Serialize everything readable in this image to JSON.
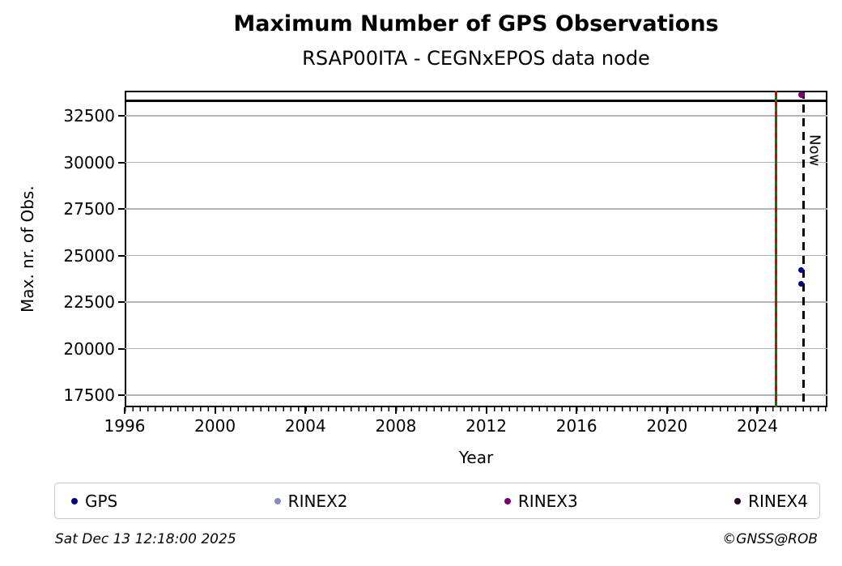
{
  "chart_data": {
    "type": "scatter",
    "title": "Maximum Number of GPS Observations",
    "subtitle": "RSAP00ITA - CEGNxEPOS data node",
    "xlabel": "Year",
    "ylabel": "Max. nr. of Obs.",
    "xlim": [
      1996.0,
      2027.1
    ],
    "ylim": [
      16850,
      33850
    ],
    "x_ticks": [
      1996,
      2000,
      2004,
      2008,
      2012,
      2016,
      2020,
      2024
    ],
    "y_ticks": [
      17500,
      20000,
      22500,
      25000,
      27500,
      30000,
      32500
    ],
    "grid": "horizontal",
    "series": [
      {
        "name": "GPS",
        "color": "#00008b",
        "marker_px": 7,
        "points": [
          {
            "x": 2025.95,
            "y": 24230
          },
          {
            "x": 2025.95,
            "y": 23490
          }
        ]
      },
      {
        "name": "RINEX2",
        "color": "#8787cb",
        "marker_px": 7,
        "points": []
      },
      {
        "name": "RINEX3",
        "color": "#770077",
        "marker_px": 8,
        "points": [
          {
            "x": 2025.95,
            "y": 33620
          }
        ]
      },
      {
        "name": "RINEX4",
        "color": "#220522",
        "marker_px": 7,
        "points": []
      }
    ],
    "annotations": {
      "event_line": {
        "x": 2024.82,
        "color_solid": "#008000",
        "color_dash": "#dd0000",
        "style": "vertical green with red dashes"
      },
      "now_line": {
        "x": 2026.05,
        "label": "Now",
        "color": "#000000",
        "style": "vertical black dashed"
      },
      "max_line": {
        "y": 33300,
        "color": "#000000",
        "style": "horizontal black solid"
      }
    },
    "legend": {
      "position": "bottom",
      "entries": [
        {
          "label": "GPS",
          "color": "#00008b"
        },
        {
          "label": "RINEX2",
          "color": "#8787cb"
        },
        {
          "label": "RINEX3",
          "color": "#770077"
        },
        {
          "label": "RINEX4",
          "color": "#220522"
        }
      ]
    }
  },
  "footer": {
    "timestamp": "Sat Dec 13 12:18:00 2025",
    "copyright": "©GNSS@ROB"
  }
}
